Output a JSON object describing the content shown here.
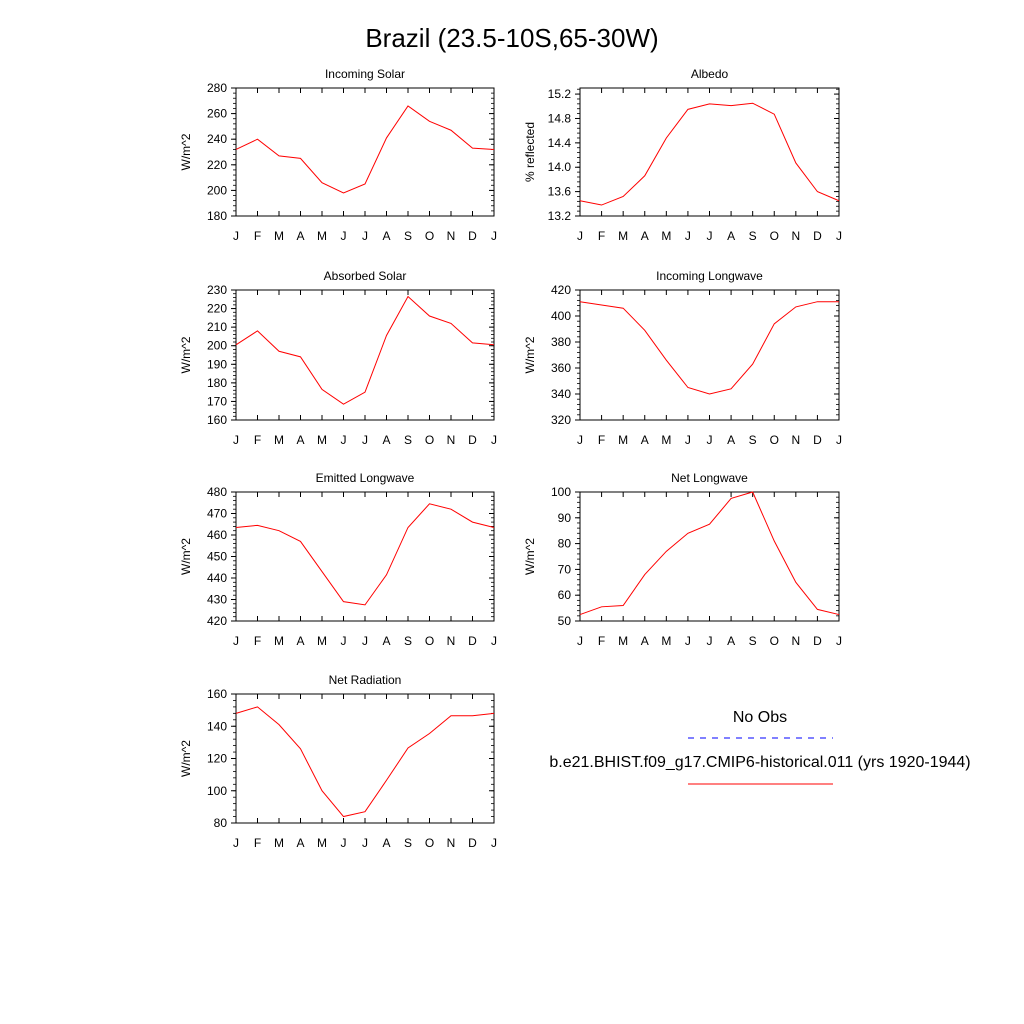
{
  "figure": {
    "title": "Brazil (23.5-10S,65-30W)"
  },
  "colors": {
    "model_line": "#ff0000",
    "obs_line": "#0000ff"
  },
  "legend": {
    "obs_label": "No Obs",
    "model_label": "b.e21.BHIST.f09_g17.CMIP6-historical.011 (yrs 1920-1944)"
  },
  "chart_data": [
    {
      "type": "line",
      "title": "Incoming Solar",
      "ylabel": "W/m^2",
      "categories": [
        "J",
        "F",
        "M",
        "A",
        "M",
        "J",
        "J",
        "A",
        "S",
        "O",
        "N",
        "D",
        "J"
      ],
      "ylim": [
        180,
        280
      ],
      "yticks": [
        180,
        200,
        220,
        240,
        260,
        280
      ],
      "ytick_labels": [
        "180",
        "200",
        "220",
        "240",
        "260",
        "280"
      ],
      "series": [
        {
          "values": [
            232,
            240,
            227,
            225,
            206,
            198,
            205,
            241,
            266,
            254,
            247,
            233,
            232
          ]
        }
      ]
    },
    {
      "type": "line",
      "title": "Albedo",
      "ylabel": "% reflected",
      "categories": [
        "J",
        "F",
        "M",
        "A",
        "M",
        "J",
        "J",
        "A",
        "S",
        "O",
        "N",
        "D",
        "J"
      ],
      "ylim": [
        13.2,
        15.3
      ],
      "yticks": [
        13.2,
        13.6,
        14.0,
        14.4,
        14.8,
        15.2
      ],
      "ytick_labels": [
        "13.2",
        "13.6",
        "14.0",
        "14.4",
        "14.8",
        "15.2"
      ],
      "series": [
        {
          "values": [
            13.45,
            13.38,
            13.52,
            13.86,
            14.48,
            14.95,
            15.04,
            15.01,
            15.05,
            14.87,
            14.07,
            13.6,
            13.45
          ]
        }
      ]
    },
    {
      "type": "line",
      "title": "Absorbed Solar",
      "ylabel": "W/m^2",
      "categories": [
        "J",
        "F",
        "M",
        "A",
        "M",
        "J",
        "J",
        "A",
        "S",
        "O",
        "N",
        "D",
        "J"
      ],
      "ylim": [
        160,
        230
      ],
      "yticks": [
        160,
        170,
        180,
        190,
        200,
        210,
        220,
        230
      ],
      "ytick_labels": [
        "160",
        "170",
        "180",
        "190",
        "200",
        "210",
        "220",
        "230"
      ],
      "series": [
        {
          "values": [
            200.5,
            208,
            197,
            194,
            176.5,
            168.5,
            175,
            205.5,
            226.5,
            216,
            212,
            201.5,
            200.5
          ]
        }
      ]
    },
    {
      "type": "line",
      "title": "Incoming Longwave",
      "ylabel": "W/m^2",
      "categories": [
        "J",
        "F",
        "M",
        "A",
        "M",
        "J",
        "J",
        "A",
        "S",
        "O",
        "N",
        "D",
        "J"
      ],
      "ylim": [
        320,
        420
      ],
      "yticks": [
        320,
        340,
        360,
        380,
        400,
        420
      ],
      "ytick_labels": [
        "320",
        "340",
        "360",
        "380",
        "400",
        "420"
      ],
      "series": [
        {
          "values": [
            411,
            408.5,
            406,
            389,
            366,
            345,
            340,
            344,
            363,
            394,
            407,
            411,
            411
          ]
        }
      ]
    },
    {
      "type": "line",
      "title": "Emitted Longwave",
      "ylabel": "W/m^2",
      "categories": [
        "J",
        "F",
        "M",
        "A",
        "M",
        "J",
        "J",
        "A",
        "S",
        "O",
        "N",
        "D",
        "J"
      ],
      "ylim": [
        420,
        480
      ],
      "yticks": [
        420,
        430,
        440,
        450,
        460,
        470,
        480
      ],
      "ytick_labels": [
        "420",
        "430",
        "440",
        "450",
        "460",
        "470",
        "480"
      ],
      "series": [
        {
          "values": [
            463.5,
            464.5,
            462,
            457,
            443,
            429,
            427.5,
            441.5,
            463.5,
            474.5,
            472,
            466,
            463.5
          ]
        }
      ]
    },
    {
      "type": "line",
      "title": "Net Longwave",
      "ylabel": "W/m^2",
      "categories": [
        "J",
        "F",
        "M",
        "A",
        "M",
        "J",
        "J",
        "A",
        "S",
        "O",
        "N",
        "D",
        "J"
      ],
      "ylim": [
        50,
        100
      ],
      "yticks": [
        50,
        60,
        70,
        80,
        90,
        100
      ],
      "ytick_labels": [
        "50",
        "60",
        "70",
        "80",
        "90",
        "100"
      ],
      "series": [
        {
          "values": [
            52.5,
            55.5,
            56,
            68,
            77,
            84,
            87.5,
            97.5,
            100,
            81,
            65,
            54.5,
            52.5
          ]
        }
      ]
    },
    {
      "type": "line",
      "title": "Net Radiation",
      "ylabel": "W/m^2",
      "categories": [
        "J",
        "F",
        "M",
        "A",
        "M",
        "J",
        "J",
        "A",
        "S",
        "O",
        "N",
        "D",
        "J"
      ],
      "ylim": [
        80,
        160
      ],
      "yticks": [
        80,
        100,
        120,
        140,
        160
      ],
      "ytick_labels": [
        "80",
        "100",
        "120",
        "140",
        "160"
      ],
      "series": [
        {
          "values": [
            148,
            152,
            141,
            126,
            100,
            84,
            87,
            106.5,
            126.5,
            135.5,
            146.5,
            146.5,
            148
          ]
        }
      ]
    }
  ]
}
